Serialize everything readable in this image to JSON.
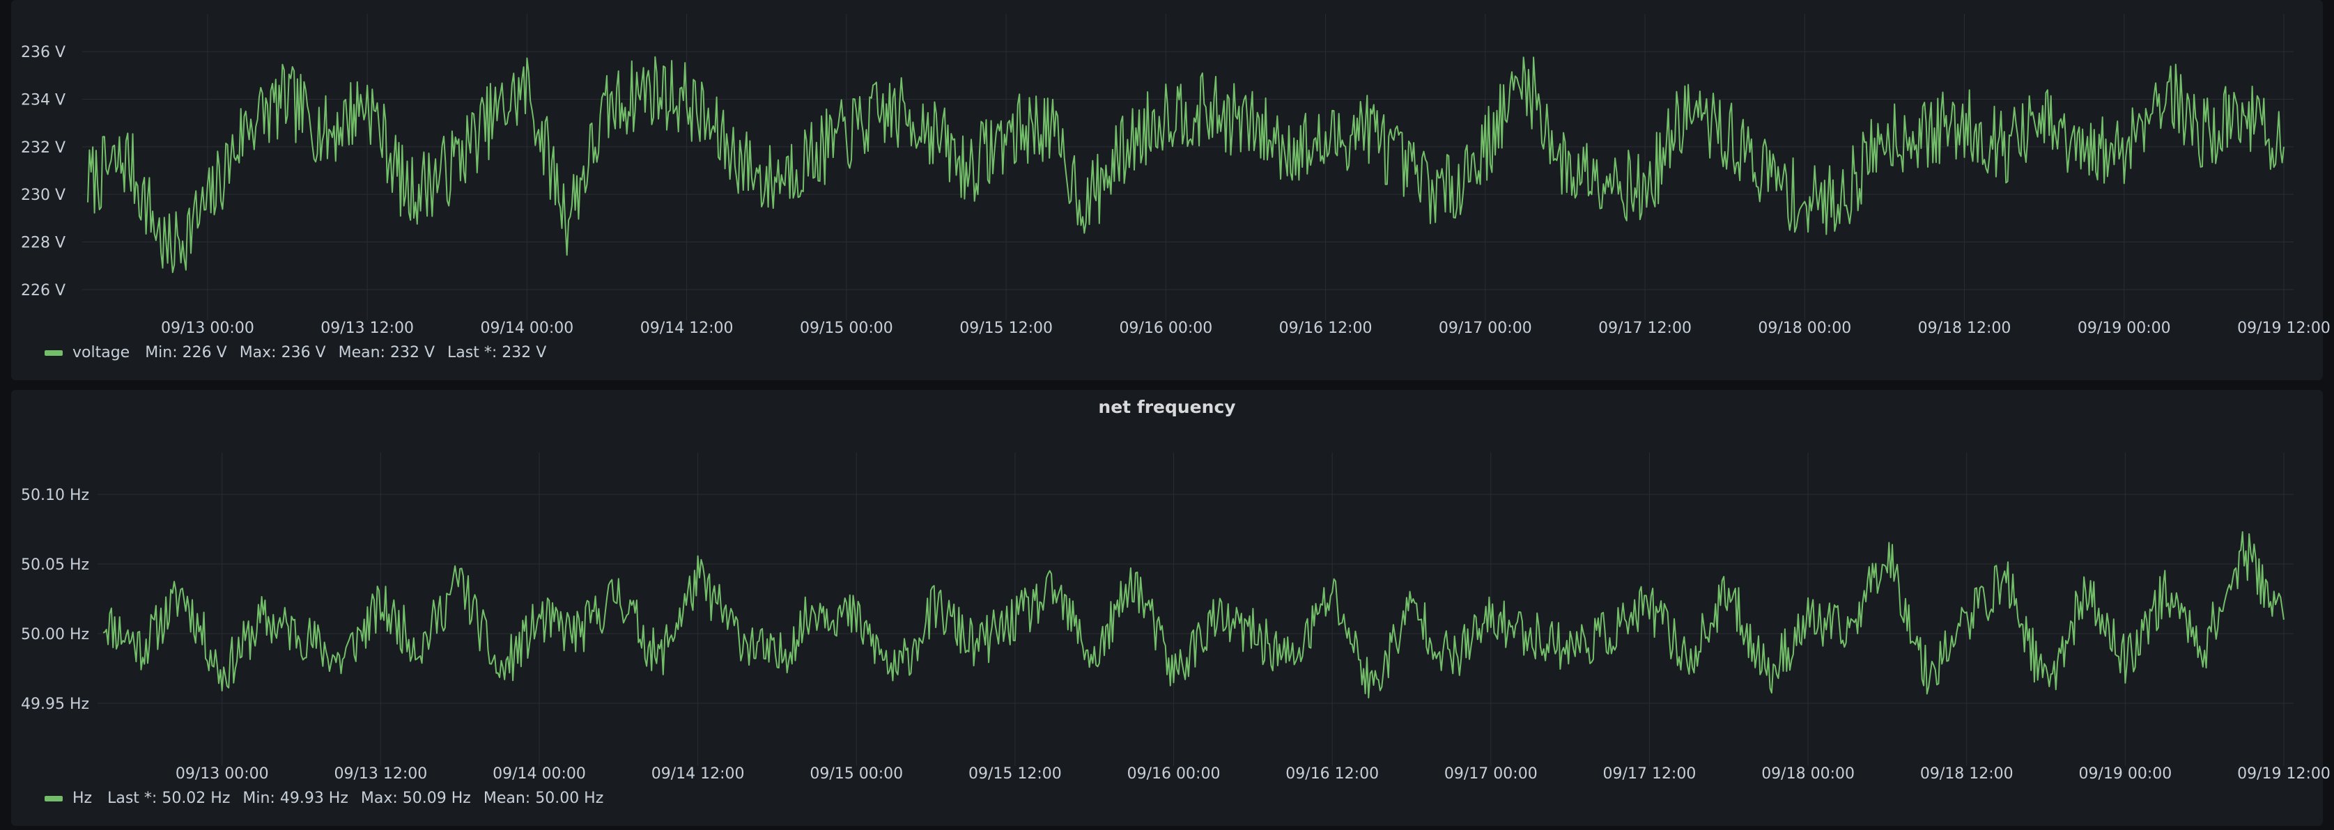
{
  "colors": {
    "series": "#73bf69",
    "panel_bg": "#181b1f",
    "page_bg": "#0e1014",
    "grid": "#2a2d33",
    "tick_text": "#c7d0d9"
  },
  "panels": [
    {
      "title": "",
      "legend": {
        "name": "voltage",
        "stats": [
          "Min: 226 V",
          "Max: 236 V",
          "Mean: 232 V",
          "Last *: 232 V"
        ]
      }
    },
    {
      "title": "net frequency",
      "legend": {
        "name": "Hz",
        "stats": [
          "Last *: 50.02 Hz",
          "Min: 49.93 Hz",
          "Max: 50.09 Hz",
          "Mean: 50.00 Hz"
        ]
      }
    }
  ],
  "chart_data": [
    {
      "type": "line",
      "title": "",
      "ylim": [
        225,
        237
      ],
      "y_ticks": [
        226,
        228,
        230,
        232,
        234,
        236
      ],
      "y_tick_labels": [
        "226 V",
        "228 V",
        "230 V",
        "232 V",
        "234 V",
        "236 V"
      ],
      "x_range": [
        "09/12 15:00",
        "09/19 12:00"
      ],
      "x_ticks": [
        "09/13 00:00",
        "09/13 12:00",
        "09/14 00:00",
        "09/14 12:00",
        "09/15 00:00",
        "09/15 12:00",
        "09/16 00:00",
        "09/16 12:00",
        "09/17 00:00",
        "09/17 12:00",
        "09/18 00:00",
        "09/18 12:00",
        "09/19 00:00",
        "09/19 12:00"
      ],
      "grid": true,
      "legend_position": "bottom-left",
      "series": [
        {
          "name": "voltage",
          "x": [
            "09/12 15:00",
            "09/12 18:00",
            "09/12 21:00",
            "09/13 00:00",
            "09/13 03:00",
            "09/13 06:00",
            "09/13 09:00",
            "09/13 12:00",
            "09/13 15:00",
            "09/13 18:00",
            "09/13 21:00",
            "09/14 00:00",
            "09/14 03:00",
            "09/14 06:00",
            "09/14 09:00",
            "09/14 12:00",
            "09/14 15:00",
            "09/14 18:00",
            "09/14 21:00",
            "09/15 00:00",
            "09/15 03:00",
            "09/15 06:00",
            "09/15 09:00",
            "09/15 12:00",
            "09/15 15:00",
            "09/15 18:00",
            "09/15 21:00",
            "09/16 00:00",
            "09/16 03:00",
            "09/16 06:00",
            "09/16 09:00",
            "09/16 12:00",
            "09/16 15:00",
            "09/16 18:00",
            "09/16 21:00",
            "09/17 00:00",
            "09/17 03:00",
            "09/17 06:00",
            "09/17 09:00",
            "09/17 12:00",
            "09/17 15:00",
            "09/17 18:00",
            "09/17 21:00",
            "09/18 00:00",
            "09/18 03:00",
            "09/18 06:00",
            "09/18 09:00",
            "09/18 12:00",
            "09/18 15:00",
            "09/18 18:00",
            "09/18 21:00",
            "09/19 00:00",
            "09/19 03:00",
            "09/19 06:00",
            "09/19 09:00",
            "09/19 12:00"
          ],
          "values": [
            230.5,
            231.5,
            227.5,
            229.5,
            233.0,
            234.0,
            232.5,
            234.0,
            230.0,
            231.0,
            233.0,
            234.5,
            229.0,
            233.5,
            234.5,
            234.0,
            232.0,
            230.5,
            231.5,
            232.5,
            233.5,
            233.0,
            231.0,
            232.5,
            233.0,
            229.5,
            232.0,
            233.5,
            233.5,
            233.0,
            232.0,
            232.0,
            233.0,
            231.0,
            230.0,
            232.0,
            235.0,
            231.0,
            231.0,
            230.0,
            233.5,
            232.5,
            231.0,
            229.5,
            230.0,
            232.5,
            232.5,
            233.0,
            232.0,
            233.0,
            231.5,
            232.0,
            234.5,
            232.5,
            233.5,
            232.0
          ]
        }
      ]
    },
    {
      "type": "line",
      "title": "net frequency",
      "ylim": [
        49.91,
        50.12
      ],
      "y_ticks": [
        49.95,
        50.0,
        50.05,
        50.1
      ],
      "y_tick_labels": [
        "49.95 Hz",
        "50.00 Hz",
        "50.05 Hz",
        "50.10 Hz"
      ],
      "x_range": [
        "09/12 15:00",
        "09/19 12:00"
      ],
      "x_ticks": [
        "09/13 00:00",
        "09/13 12:00",
        "09/14 00:00",
        "09/14 12:00",
        "09/15 00:00",
        "09/15 12:00",
        "09/16 00:00",
        "09/16 12:00",
        "09/17 00:00",
        "09/17 12:00",
        "09/18 00:00",
        "09/18 12:00",
        "09/19 00:00",
        "09/19 12:00"
      ],
      "grid": true,
      "legend_position": "bottom-left",
      "series": [
        {
          "name": "Hz",
          "x": [
            "09/12 15:00",
            "09/12 18:00",
            "09/12 21:00",
            "09/13 00:00",
            "09/13 03:00",
            "09/13 06:00",
            "09/13 09:00",
            "09/13 12:00",
            "09/13 15:00",
            "09/13 18:00",
            "09/13 21:00",
            "09/14 00:00",
            "09/14 03:00",
            "09/14 06:00",
            "09/14 09:00",
            "09/14 12:00",
            "09/14 15:00",
            "09/14 18:00",
            "09/14 21:00",
            "09/15 00:00",
            "09/15 03:00",
            "09/15 06:00",
            "09/15 09:00",
            "09/15 12:00",
            "09/15 15:00",
            "09/15 18:00",
            "09/15 21:00",
            "09/16 00:00",
            "09/16 03:00",
            "09/16 06:00",
            "09/16 09:00",
            "09/16 12:00",
            "09/16 15:00",
            "09/16 18:00",
            "09/16 21:00",
            "09/17 00:00",
            "09/17 03:00",
            "09/17 06:00",
            "09/17 09:00",
            "09/17 12:00",
            "09/17 15:00",
            "09/17 18:00",
            "09/17 21:00",
            "09/18 00:00",
            "09/18 03:00",
            "09/18 06:00",
            "09/18 09:00",
            "09/18 12:00",
            "09/18 15:00",
            "09/18 18:00",
            "09/18 21:00",
            "09/19 00:00",
            "09/19 03:00",
            "09/19 06:00",
            "09/19 09:00",
            "09/19 12:00"
          ],
          "values": [
            50.01,
            49.99,
            50.03,
            49.97,
            50.01,
            50.0,
            49.98,
            50.02,
            49.99,
            50.04,
            49.97,
            50.01,
            50.0,
            50.03,
            49.98,
            50.04,
            50.0,
            49.98,
            50.02,
            50.01,
            49.97,
            50.02,
            49.99,
            50.01,
            50.03,
            49.98,
            50.04,
            49.97,
            50.01,
            50.0,
            49.98,
            50.03,
            49.96,
            50.02,
            49.98,
            50.01,
            50.0,
            49.99,
            50.0,
            50.02,
            49.98,
            50.03,
            49.97,
            50.01,
            50.0,
            50.06,
            49.97,
            50.01,
            50.04,
            49.96,
            50.03,
            49.98,
            50.03,
            49.99,
            50.06,
            50.01
          ]
        }
      ]
    }
  ]
}
